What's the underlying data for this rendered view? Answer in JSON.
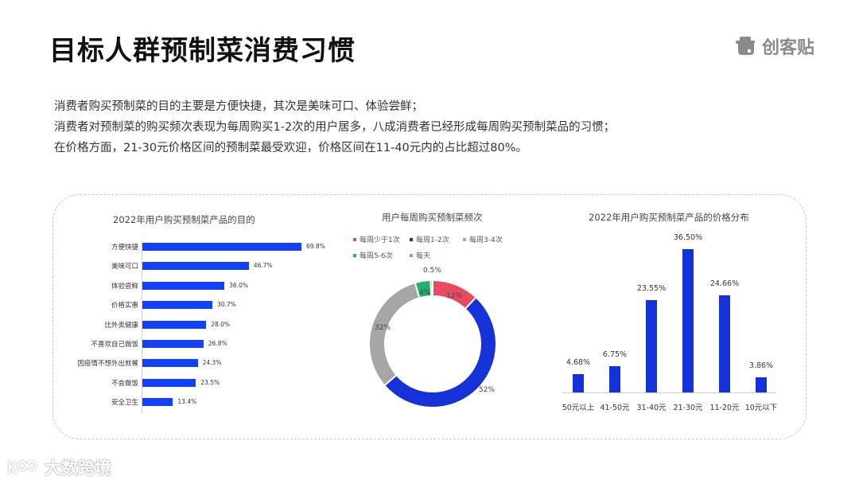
{
  "header": {
    "title": "目标人群预制菜消费习惯",
    "brand": "创客贴"
  },
  "summary": [
    "消费者购买预制菜的目的主要是方便快捷，其次是美味可口、体验尝鲜；",
    "消费者对预制菜的购买频次表现为每周购买1-2次的用户居多，八成消费者已经形成每周购买预制菜品的习惯；",
    "在价格方面，21-30元价格区间的预制菜最受欢迎，价格区间在11-40元内的占比超过80%。"
  ],
  "watermark": "大数跨境",
  "chart_data": [
    {
      "type": "bar",
      "orientation": "horizontal",
      "title": "2022年用户购买预制菜产品的目的",
      "categories": [
        "方便快捷",
        "美味可口",
        "体验尝鲜",
        "价格实惠",
        "比外卖健康",
        "不喜欢自己做饭",
        "因疫情不想外出就餐",
        "不会做饭",
        "安全卫生"
      ],
      "values": [
        69.8,
        46.7,
        36.0,
        30.7,
        28.0,
        26.8,
        24.3,
        23.5,
        13.4
      ],
      "labels": [
        "69.8%",
        "46.7%",
        "36.0%",
        "30.7%",
        "28.0%",
        "26.8%",
        "24.3%",
        "23.5%",
        "13.4%"
      ],
      "color": "#1240ff",
      "xlabel": "",
      "ylabel": "",
      "grid": false
    },
    {
      "type": "pie",
      "donut": true,
      "title": "用户每周购买预制菜频次",
      "categories": [
        "每周少于1次",
        "每周1-2次",
        "每周3-4次",
        "每周5-6次",
        "每天"
      ],
      "values": [
        12,
        52,
        32,
        4,
        0.5
      ],
      "labels": [
        "12%",
        "52%",
        "32%",
        "4%",
        "0.5%"
      ],
      "colors": [
        "#e84a5f",
        "#1432d8",
        "#a6a6a6",
        "#22b06a",
        "#6fa8dc"
      ],
      "legend_position": "top"
    },
    {
      "type": "bar",
      "title": "2022年用户购买预制菜产品的价格分布",
      "categories": [
        "50元以上",
        "41-50元",
        "31-40元",
        "21-30元",
        "11-20元",
        "10元以下"
      ],
      "values": [
        4.68,
        6.75,
        23.55,
        36.5,
        24.66,
        3.86
      ],
      "labels": [
        "4.68%",
        "6.75%",
        "23.55%",
        "36.50%",
        "24.66%",
        "3.86%"
      ],
      "color": "#1432d8",
      "xlabel": "",
      "ylabel": "",
      "grid": false
    }
  ]
}
